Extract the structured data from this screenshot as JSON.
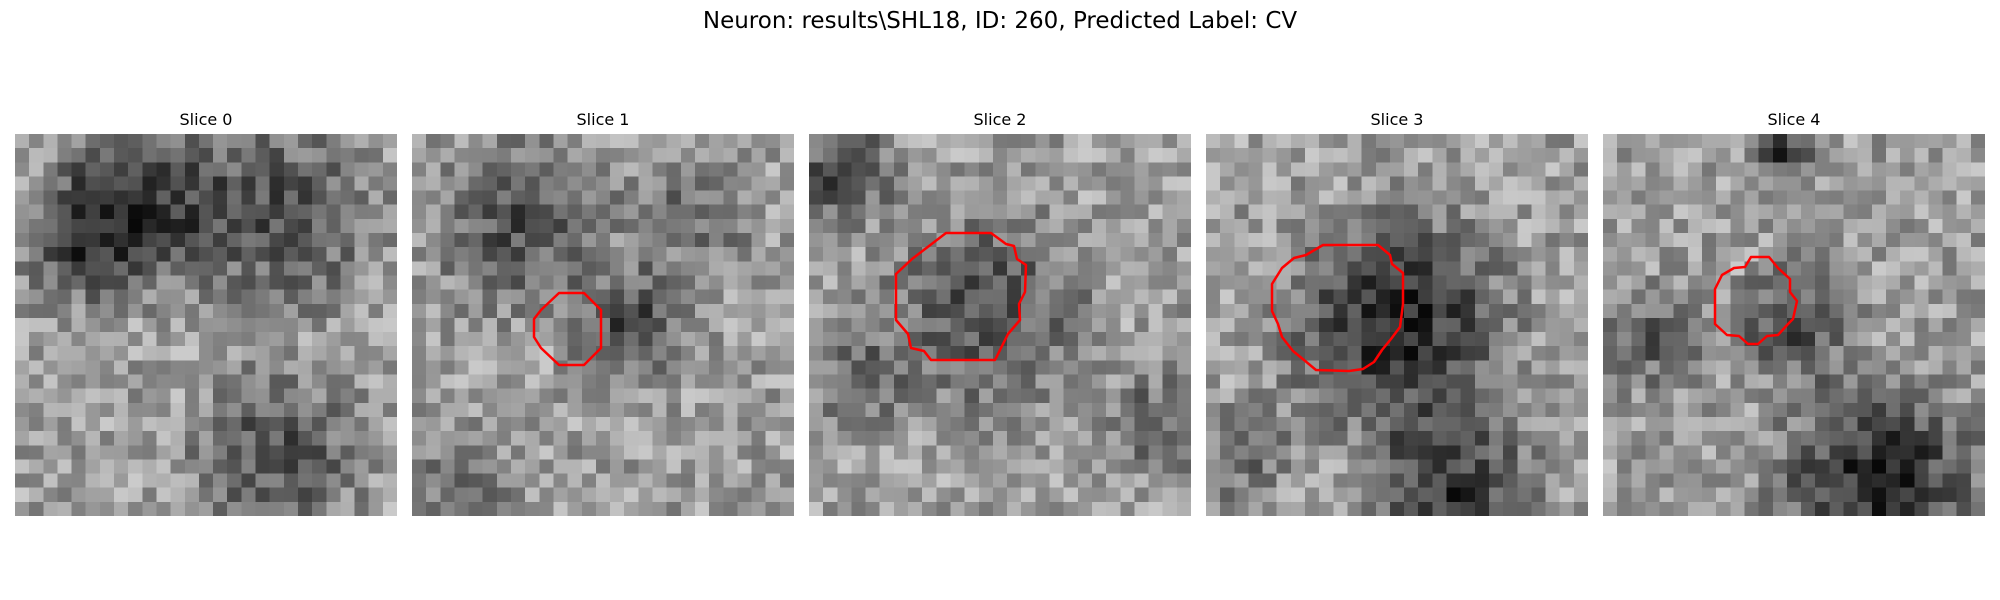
{
  "figure": {
    "title": "Neuron: results\\SHL18, ID: 260, Predicted Label: CV"
  },
  "colors": {
    "contour": "#ff0000",
    "background": "#ffffff"
  },
  "slices": [
    {
      "label": "Slice 0",
      "has_contour": false
    },
    {
      "label": "Slice 1",
      "has_contour": true
    },
    {
      "label": "Slice 2",
      "has_contour": true
    },
    {
      "label": "Slice 3",
      "has_contour": true
    },
    {
      "label": "Slice 4",
      "has_contour": true
    }
  ]
}
